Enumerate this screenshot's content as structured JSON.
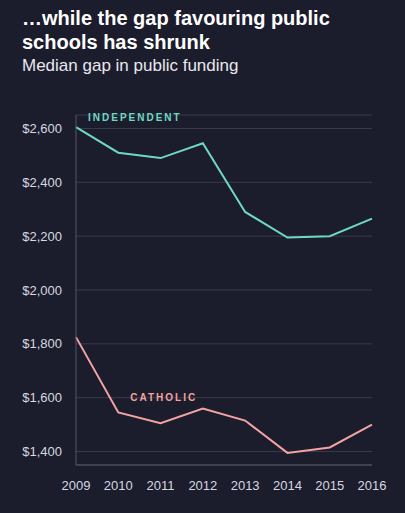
{
  "chart_data": {
    "type": "line",
    "title": "…while the gap favouring public schools has shrunk",
    "subtitle": "Median gap in public funding",
    "categories": [
      "2009",
      "2010",
      "2011",
      "2012",
      "2013",
      "2014",
      "2015",
      "2016"
    ],
    "series": [
      {
        "name": "INDEPENDENT",
        "color": "#6fd8c4",
        "values": [
          2605,
          2510,
          2490,
          2545,
          2290,
          2195,
          2200,
          2265
        ]
      },
      {
        "name": "CATHOLIC",
        "color": "#f2a3a3",
        "values": [
          1825,
          1545,
          1505,
          1560,
          1515,
          1395,
          1415,
          1500
        ]
      }
    ],
    "ylim": [
      1350,
      2650
    ],
    "yticks": [
      {
        "value": 1400,
        "label": "$1,400"
      },
      {
        "value": 1600,
        "label": "$1,600"
      },
      {
        "value": 1800,
        "label": "$1,800"
      },
      {
        "value": 2000,
        "label": "$2,000"
      },
      {
        "value": 2200,
        "label": "$2,200"
      },
      {
        "value": 2400,
        "label": "$2,400"
      },
      {
        "value": 2600,
        "label": "$2,600"
      }
    ],
    "grid": true
  }
}
